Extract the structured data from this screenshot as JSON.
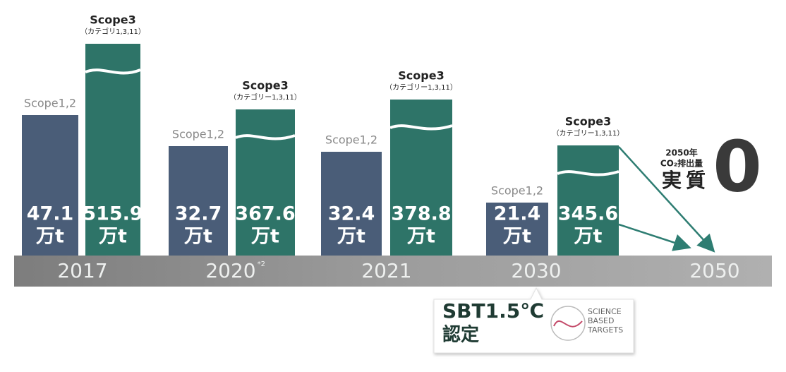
{
  "groups": [
    {
      "year": "2017",
      "scope12": {
        "label": "Scope1,2",
        "value": "47.1",
        "unit": "万t"
      },
      "scope3": {
        "label": "Scope3",
        "sublabel": "（カテゴリ1,3,11）",
        "value": "515.9",
        "unit": "万t"
      }
    },
    {
      "year": "2020",
      "year_note": "*2",
      "scope12": {
        "label": "Scope1,2",
        "value": "32.7",
        "unit": "万t"
      },
      "scope3": {
        "label": "Scope3",
        "sublabel": "（カテゴリー1,3,11）",
        "value": "367.6",
        "unit": "万t"
      }
    },
    {
      "year": "2021",
      "scope12": {
        "label": "Scope1,2",
        "value": "32.4",
        "unit": "万t"
      },
      "scope3": {
        "label": "Scope3",
        "sublabel": "（カテゴリー1,3,11）",
        "value": "378.8",
        "unit": "万t"
      }
    },
    {
      "year": "2030",
      "scope12": {
        "label": "Scope1,2",
        "value": "21.4",
        "unit": "万t"
      },
      "scope3": {
        "label": "Scope3",
        "sublabel": "（カテゴリー1,3,11）",
        "value": "345.6",
        "unit": "万t"
      }
    }
  ],
  "goal": {
    "year": "2050",
    "line1": "2050年",
    "line2": "CO₂排出量",
    "line3": "実質",
    "value": "0"
  },
  "certification": {
    "title": "SBT1.5℃",
    "subtitle": "認定",
    "logo": [
      "SCIENCE",
      "BASED",
      "TARGETS"
    ]
  }
}
